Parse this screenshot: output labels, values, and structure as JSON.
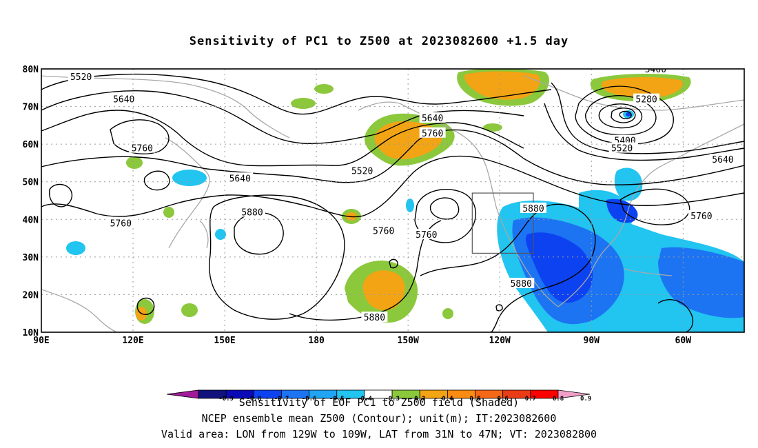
{
  "title": "Sensitivity of PC1 to Z500 at 2023082600 +1.5 day",
  "map": {
    "lat_ticks": [
      "80N",
      "70N",
      "60N",
      "50N",
      "40N",
      "30N",
      "20N",
      "10N"
    ],
    "lon_ticks": [
      "90E",
      "120E",
      "150E",
      "180",
      "150W",
      "120W",
      "90W",
      "60W"
    ],
    "lon_range": [
      90,
      320
    ],
    "lat_range": [
      10,
      80
    ],
    "grid": "dotted",
    "valid_box": {
      "lon": [
        231,
        251
      ],
      "lat": [
        31,
        47
      ]
    },
    "contour_labels": [
      {
        "text": "5520",
        "lon": 103,
        "lat": 78
      },
      {
        "text": "5640",
        "lon": 117,
        "lat": 72
      },
      {
        "text": "5760",
        "lon": 123,
        "lat": 59
      },
      {
        "text": "5640",
        "lon": 155,
        "lat": 51
      },
      {
        "text": "5880",
        "lon": 159,
        "lat": 42
      },
      {
        "text": "5760",
        "lon": 116,
        "lat": 39
      },
      {
        "text": "5520",
        "lon": 195,
        "lat": 53
      },
      {
        "text": "5640",
        "lon": 218,
        "lat": 67
      },
      {
        "text": "5760",
        "lon": 218,
        "lat": 63
      },
      {
        "text": "5760",
        "lon": 202,
        "lat": 37
      },
      {
        "text": "5760",
        "lon": 216,
        "lat": 36
      },
      {
        "text": "5880",
        "lon": 251,
        "lat": 43
      },
      {
        "text": "5880",
        "lon": 247,
        "lat": 23
      },
      {
        "text": "5880",
        "lon": 199,
        "lat": 14
      },
      {
        "text": "5400",
        "lon": 291,
        "lat": 80
      },
      {
        "text": "5280",
        "lon": 288,
        "lat": 72
      },
      {
        "text": "5400",
        "lon": 281,
        "lat": 61
      },
      {
        "text": "5520",
        "lon": 280,
        "lat": 59
      },
      {
        "text": "5640",
        "lon": 313,
        "lat": 56
      },
      {
        "text": "5760",
        "lon": 306,
        "lat": 41
      }
    ]
  },
  "colorbar": {
    "colors": [
      "#a01a9a",
      "#12127c",
      "#0a0ab8",
      "#0c42f0",
      "#1c74f2",
      "#20a4f4",
      "#22c4f0",
      "#ffffff",
      "#8cc83c",
      "#f2a414",
      "#fa8c14",
      "#f46818",
      "#ea3c16",
      "#ff0000",
      "#f0a0c8"
    ],
    "labels": [
      "-0.9",
      "-0.8",
      "-0.7",
      "-0.6",
      "-0.5",
      "-0.4",
      "-0.3",
      "0.3",
      "0.4",
      "0.5",
      "0.6",
      "0.7",
      "0.8",
      "0.9"
    ]
  },
  "captions": {
    "line1": "Sensitivity of EOF PC1 to Z500 field (Shaded)",
    "line2": "NCEP ensemble mean Z500 (Contour); unit(m); IT:2023082600",
    "line3": "Valid area: LON from 129W to 109W, LAT from 31N to 47N; VT: 2023082800"
  }
}
